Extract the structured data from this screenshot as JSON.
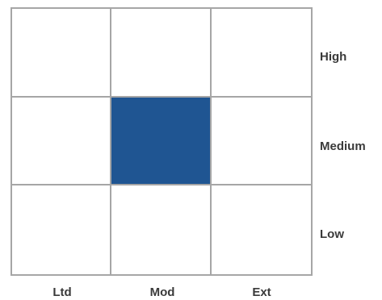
{
  "matrix": {
    "rows": [
      "High",
      "Medium",
      "Low"
    ],
    "columns": [
      "Ltd",
      "Mod",
      "Ext"
    ],
    "highlighted_cell": {
      "row": "Medium",
      "column": "Mod"
    },
    "highlight_color": "#1f5592",
    "grid_line_color": "#a6a6a6",
    "label_color": "#3a3a3a"
  }
}
